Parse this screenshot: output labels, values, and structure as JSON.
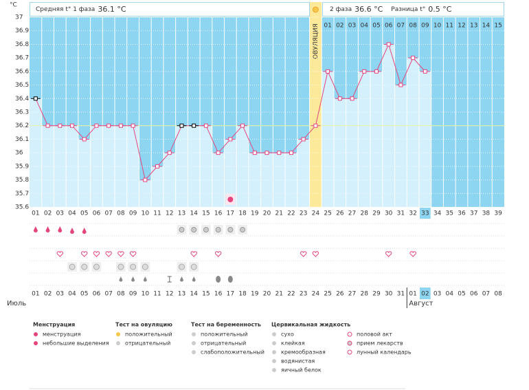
{
  "header": {
    "phase1_label": "Средняя t° 1 фаза",
    "phase1_value": "36.1 °C",
    "phase2_label": "2 фаза",
    "phase2_value": "36.6 °C",
    "diff_label": "Разница t°",
    "diff_value": "0.5 °C"
  },
  "chart_data": {
    "type": "line",
    "y_unit": "°C",
    "ovulation_label": "ОВУЛЯЦИЯ",
    "color": "#e5457d",
    "cover_line": 36.2,
    "categories": [
      "01",
      "02",
      "03",
      "04",
      "05",
      "06",
      "07",
      "08",
      "09",
      "10",
      "11",
      "12",
      "13",
      "14",
      "15",
      "16",
      "17",
      "18",
      "19",
      "20",
      "21",
      "22",
      "23",
      "24",
      "25",
      "26",
      "27",
      "28",
      "29",
      "30",
      "31",
      "32",
      "33",
      "34",
      "35",
      "36",
      "37",
      "38",
      "39"
    ],
    "phase2_days": [
      "01",
      "02",
      "03",
      "04",
      "05",
      "06",
      "07",
      "08",
      "09",
      "10",
      "11",
      "12",
      "13",
      "14",
      "15"
    ],
    "values": [
      36.4,
      36.2,
      36.2,
      36.2,
      36.1,
      36.2,
      36.2,
      36.2,
      36.2,
      35.8,
      35.9,
      36.0,
      36.2,
      36.2,
      36.2,
      36.0,
      36.1,
      36.2,
      36.0,
      36.0,
      36.0,
      36.0,
      36.1,
      36.2,
      36.6,
      36.4,
      36.4,
      36.6,
      36.6,
      36.8,
      36.5,
      36.7,
      36.6,
      null,
      null,
      null,
      null,
      null,
      null
    ],
    "ylim": [
      35.6,
      37
    ],
    "yticks": [
      35.6,
      35.7,
      35.8,
      35.9,
      36,
      36.1,
      36.2,
      36.3,
      36.4,
      36.5,
      36.6,
      36.7,
      36.8,
      36.9,
      37
    ],
    "grid": true
  },
  "dates": {
    "days": [
      "01",
      "02",
      "03",
      "04",
      "05",
      "06",
      "07",
      "08",
      "09",
      "10",
      "11",
      "12",
      "13",
      "14",
      "15",
      "16",
      "17",
      "18",
      "19",
      "20",
      "21",
      "22",
      "23",
      "24",
      "25",
      "26",
      "27",
      "28",
      "29",
      "30",
      "31",
      "01",
      "02",
      "03",
      "04",
      "05",
      "06",
      "07",
      "08"
    ],
    "months": [
      "Июль",
      "Август"
    ]
  },
  "legend": {
    "groups": [
      {
        "title": "Менструация",
        "items": [
          "менструация",
          "небольшие выделения"
        ]
      },
      {
        "title": "Тест на овуляцию",
        "items": [
          "положительный",
          "отрицательный"
        ]
      },
      {
        "title": "Тест на беременность",
        "items": [
          "положительный",
          "отрицательный",
          "слабоположительный"
        ]
      },
      {
        "title": "Цервикальная жидкость",
        "items": [
          "сухо",
          "клейкая",
          "кремообразная",
          "водянистая",
          "яичный белок"
        ]
      }
    ],
    "extra": [
      "половой акт",
      "прием лекарств",
      "лунный календарь"
    ]
  }
}
